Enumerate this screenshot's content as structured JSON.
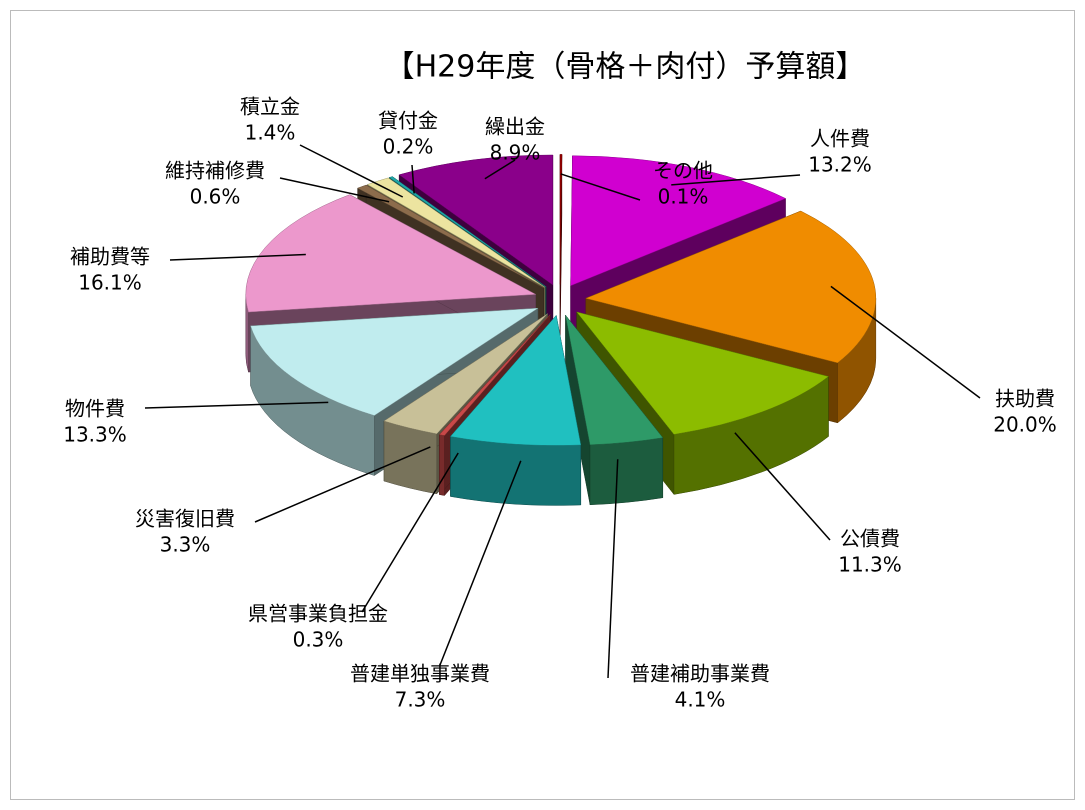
{
  "chart_data": {
    "type": "pie3d",
    "title": "【H29年度（骨格＋肉付）予算額】",
    "categories": [
      "その他",
      "人件費",
      "扶助費",
      "公債費",
      "普建補助事業費",
      "普建単独事業費",
      "県営事業負担金",
      "災害復旧費",
      "物件費",
      "補助費等",
      "維持補修費",
      "積立金",
      "貸付金",
      "繰出金"
    ],
    "values": [
      0.1,
      13.2,
      20.0,
      11.3,
      4.1,
      7.3,
      0.3,
      3.3,
      13.3,
      16.1,
      0.6,
      1.4,
      0.2,
      8.9
    ],
    "value_labels": [
      "0.1%",
      "13.2%",
      "20.0%",
      "11.3%",
      "4.1%",
      "7.3%",
      "0.3%",
      "3.3%",
      "13.3%",
      "16.1%",
      "0.6%",
      "1.4%",
      "0.2%",
      "8.9%"
    ],
    "colors": [
      "#a00000",
      "#d000d0",
      "#f08c00",
      "#8cbc00",
      "#2e9a68",
      "#20c0c0",
      "#c84848",
      "#c8c098",
      "#c0ecee",
      "#ec98cc",
      "#8c6c4c",
      "#ece4a0",
      "#20a8a8",
      "#8a008a"
    ]
  }
}
